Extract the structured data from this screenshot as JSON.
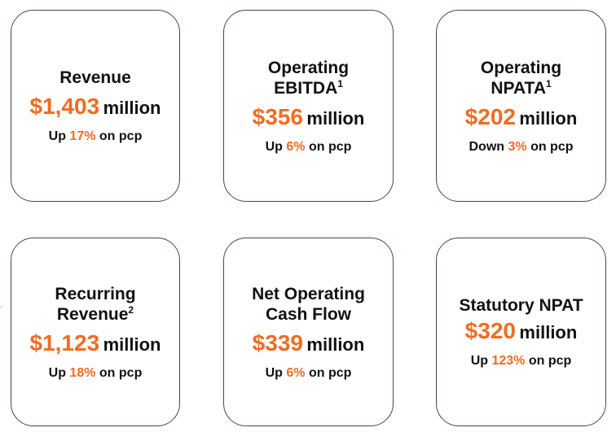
{
  "cards": [
    {
      "title": "Revenue",
      "sup": "",
      "amount": "$1,403",
      "unit": "million",
      "direction": "Up",
      "pct": "17%",
      "basis": "on pcp"
    },
    {
      "title": "Operating EBITDA",
      "sup": "1",
      "amount": "$356",
      "unit": "million",
      "direction": "Up",
      "pct": "6%",
      "basis": "on pcp"
    },
    {
      "title": "Operating NPATA",
      "sup": "1",
      "amount": "$202",
      "unit": "million",
      "direction": "Down",
      "pct": "3%",
      "basis": "on pcp"
    },
    {
      "title": "Recurring Revenue",
      "sup": "2",
      "amount": "$1,123",
      "unit": "million",
      "direction": "Up",
      "pct": "18%",
      "basis": "on pcp"
    },
    {
      "title": "Net Operating Cash Flow",
      "sup": "",
      "amount": "$339",
      "unit": "million",
      "direction": "Up",
      "pct": "6%",
      "basis": "on pcp"
    },
    {
      "title": "Statutory NPAT",
      "sup": "",
      "amount": "$320",
      "unit": "million",
      "direction": "Up",
      "pct": "123%",
      "basis": "on pcp"
    }
  ],
  "colors": {
    "accent": "#f26b21",
    "text": "#111111",
    "border": "#3a4a6b"
  }
}
